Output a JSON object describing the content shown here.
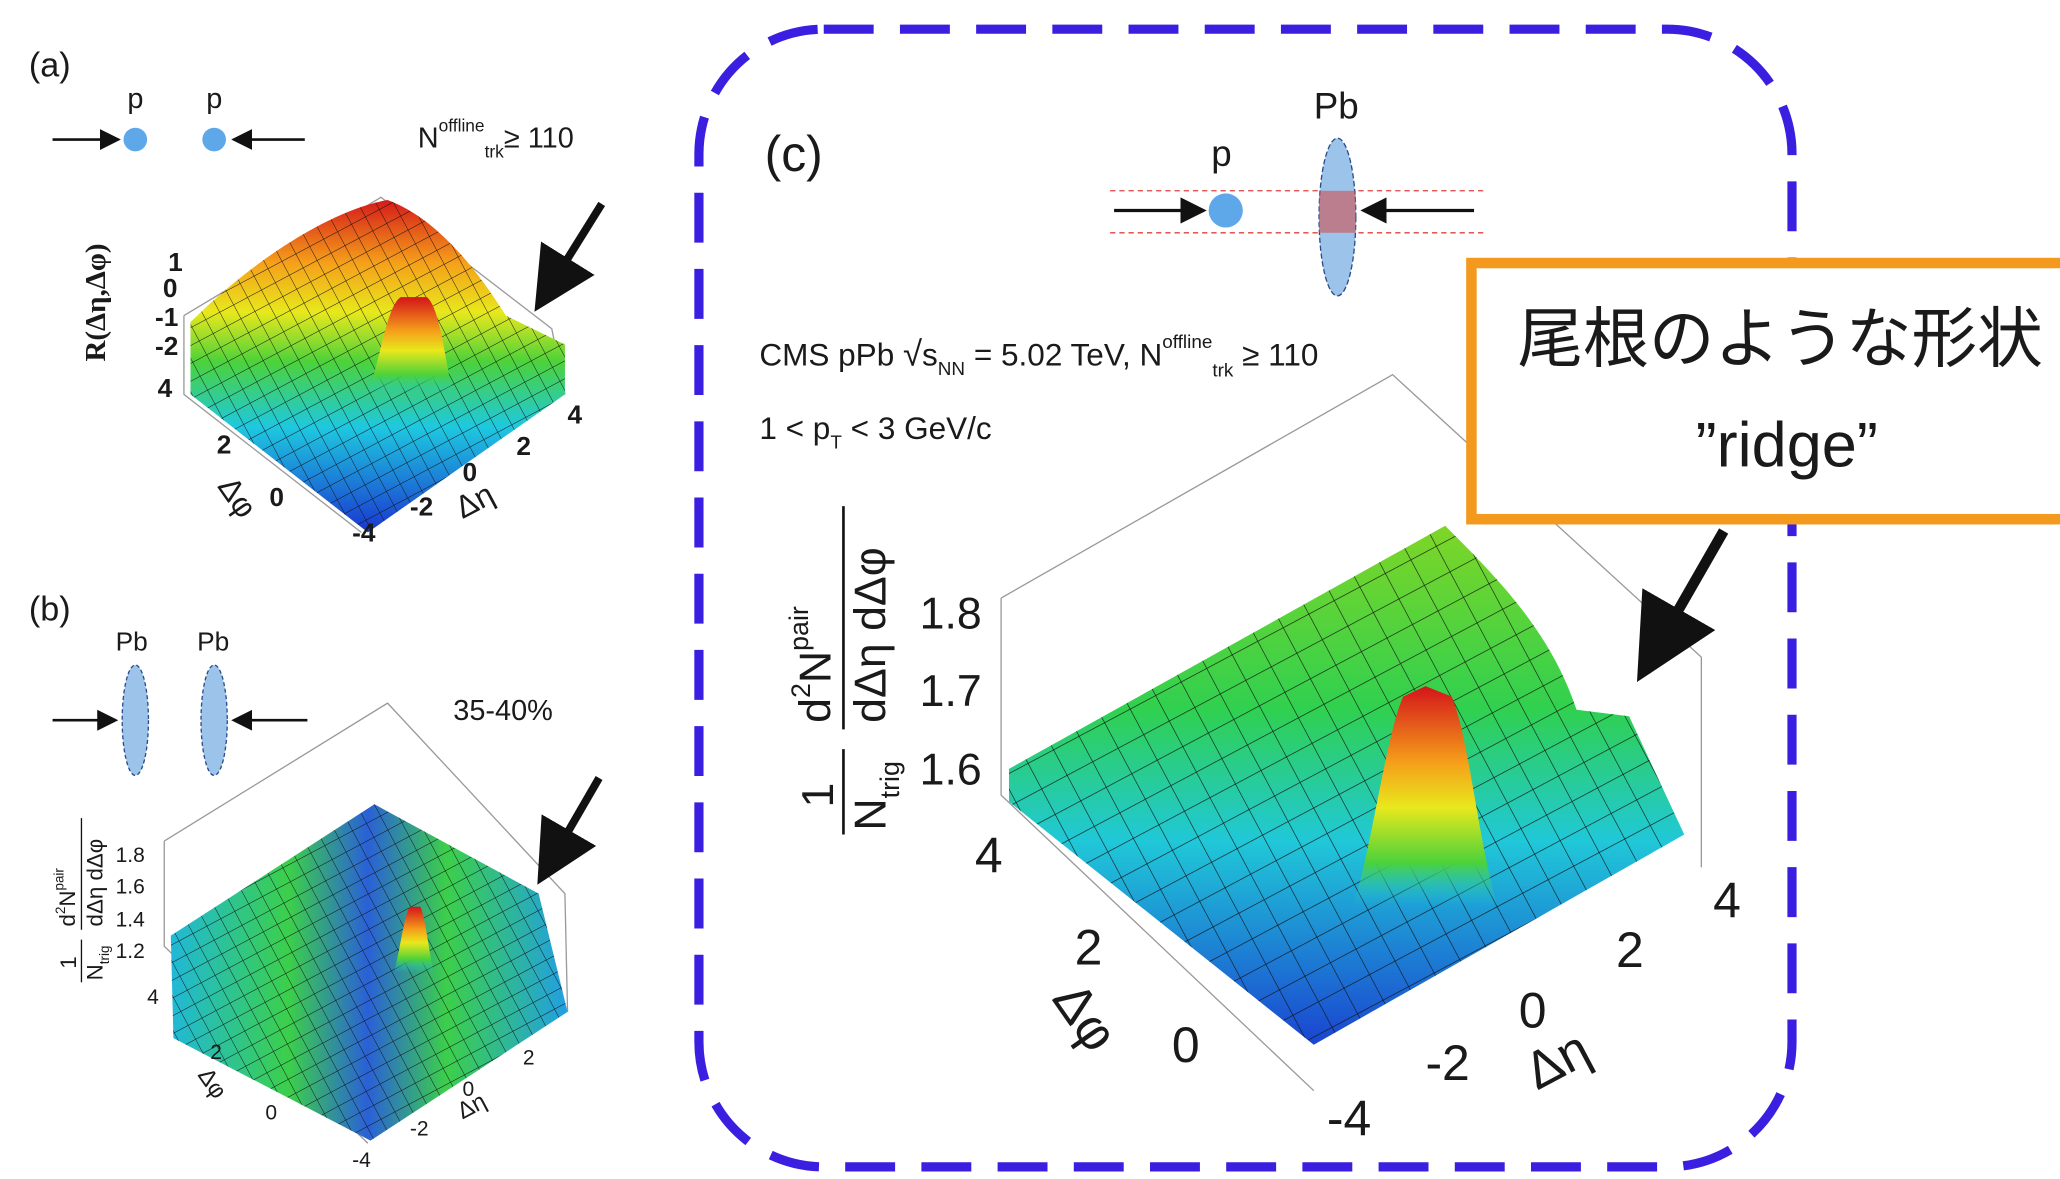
{
  "panels": [
    {
      "label": "(a)",
      "beams": [
        "p",
        "p"
      ],
      "condition": {
        "base": "N",
        "sup": "offline",
        "sub": "trk",
        "rest": "≥ 110"
      },
      "z_axis": {
        "label": "R(Δη,Δφ)",
        "ticks": [
          "1",
          "0",
          "-1",
          "-2"
        ]
      },
      "phi_axis": {
        "label": "Δφ",
        "ticks": [
          "4",
          "2",
          "0"
        ]
      },
      "eta_axis": {
        "label": "Δη",
        "ticks": [
          "-4",
          "-2",
          "0",
          "2",
          "4"
        ]
      }
    },
    {
      "label": "(b)",
      "beams": [
        "Pb",
        "Pb"
      ],
      "condition": "35-40%",
      "z_axis": {
        "label": {
          "one": "1",
          "n": "N",
          "trig": "trig",
          "d": "d",
          "two": "2",
          "np": "N",
          "pair": "pair",
          "den": "dΔη dΔφ"
        },
        "ticks": [
          "1.8",
          "1.6",
          "1.4",
          "1.2"
        ]
      },
      "phi_axis": {
        "label": "Δφ",
        "ticks": [
          "4",
          "2",
          "0"
        ]
      },
      "eta_axis": {
        "label": "Δη",
        "ticks": [
          "-4",
          "-2",
          "0",
          "2"
        ]
      }
    },
    {
      "label": "(c)",
      "beams": [
        "p",
        "Pb"
      ],
      "condition": {
        "pre": "CMS pPb ",
        "sqrt": "√",
        "s": "s",
        "nn": "NN",
        "mid": " = 5.02 TeV, ",
        "n": "N",
        "sup": "offline",
        "sub": "trk",
        "rest": " ≥ 110"
      },
      "cut": {
        "pre": "1 < p",
        "sub": "T",
        "rest": " < 3 GeV/c"
      },
      "z_axis": {
        "label": {
          "one": "1",
          "n": "N",
          "trig": "trig",
          "d": "d",
          "two": "2",
          "np": "N",
          "pair": "pair",
          "den": "dΔη dΔφ"
        },
        "ticks": [
          "1.8",
          "1.7",
          "1.6"
        ]
      },
      "phi_axis": {
        "label": "Δφ",
        "ticks": [
          "4",
          "2",
          "0"
        ]
      },
      "eta_axis": {
        "label": "Δη",
        "ticks": [
          "-4",
          "-2",
          "0",
          "2",
          "4"
        ]
      }
    }
  ],
  "callout": {
    "title": "尾根のような形状",
    "subtitle": "”ridge”"
  }
}
